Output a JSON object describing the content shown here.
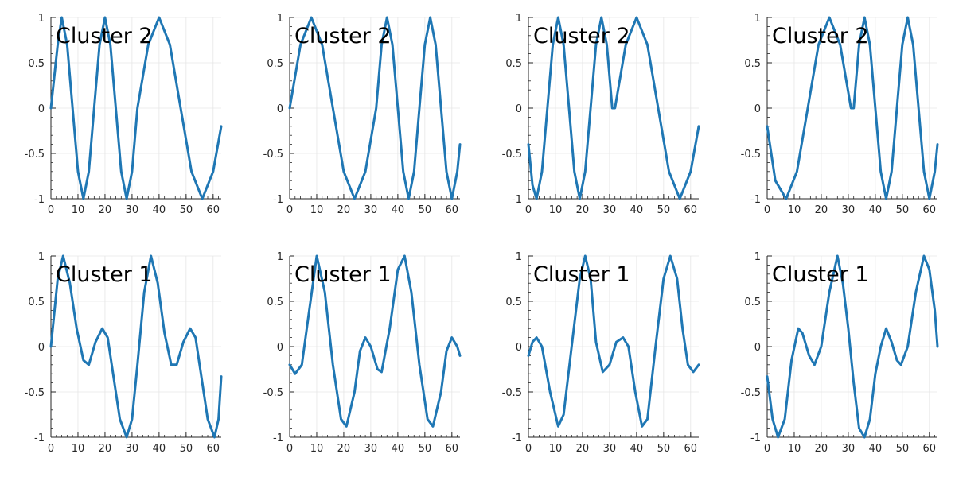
{
  "chart_data": [
    {
      "type": "line",
      "title": "Cluster 2",
      "xlim": [
        0,
        63
      ],
      "ylim": [
        -1,
        1
      ],
      "grid": true,
      "xticks": [
        0,
        10,
        20,
        30,
        40,
        50,
        60
      ],
      "yticks": [
        -1,
        -0.5,
        0,
        0.5,
        1
      ],
      "xtick_labels": [
        "0",
        "10",
        "20",
        "30",
        "40",
        "50",
        "60"
      ],
      "ytick_labels": [
        "-1",
        "-0.5",
        "0",
        "0.5",
        "1"
      ],
      "series": [
        {
          "color": "#1f77b4",
          "points": [
            [
              0,
              0
            ],
            [
              2.5,
              0.7
            ],
            [
              4,
              1
            ],
            [
              6,
              0.7
            ],
            [
              8,
              0
            ],
            [
              10,
              -0.7
            ],
            [
              12,
              -1
            ],
            [
              14,
              -0.7
            ],
            [
              16,
              0
            ],
            [
              18,
              0.7
            ],
            [
              20,
              1
            ],
            [
              22,
              0.7
            ],
            [
              24,
              0
            ],
            [
              26,
              -0.7
            ],
            [
              28,
              -1
            ],
            [
              30,
              -0.7
            ],
            [
              32,
              0
            ],
            [
              36,
              0.7
            ],
            [
              40,
              1
            ],
            [
              44,
              0.7
            ],
            [
              48,
              0
            ],
            [
              52,
              -0.7
            ],
            [
              56,
              -1
            ],
            [
              60,
              -0.7
            ],
            [
              63,
              -0.2
            ]
          ]
        }
      ]
    },
    {
      "type": "line",
      "title": "Cluster 2",
      "xlim": [
        0,
        63
      ],
      "ylim": [
        -1,
        1
      ],
      "grid": true,
      "xticks": [
        0,
        10,
        20,
        30,
        40,
        50,
        60
      ],
      "yticks": [
        -1,
        -0.5,
        0,
        0.5,
        1
      ],
      "xtick_labels": [
        "0",
        "10",
        "20",
        "30",
        "40",
        "50",
        "60"
      ],
      "ytick_labels": [
        "-1",
        "-0.5",
        "0",
        "0.5",
        "1"
      ],
      "series": [
        {
          "color": "#1f77b4",
          "points": [
            [
              0,
              0
            ],
            [
              4,
              0.7
            ],
            [
              8,
              1
            ],
            [
              12,
              0.7
            ],
            [
              16,
              0
            ],
            [
              20,
              -0.7
            ],
            [
              24,
              -1
            ],
            [
              28,
              -0.7
            ],
            [
              32,
              0
            ],
            [
              34,
              0.7
            ],
            [
              36,
              1
            ],
            [
              38,
              0.7
            ],
            [
              40,
              0
            ],
            [
              42,
              -0.7
            ],
            [
              44,
              -1
            ],
            [
              46,
              -0.7
            ],
            [
              48,
              0
            ],
            [
              50,
              0.7
            ],
            [
              52,
              1
            ],
            [
              54,
              0.7
            ],
            [
              56,
              0
            ],
            [
              58,
              -0.7
            ],
            [
              60,
              -1
            ],
            [
              62,
              -0.7
            ],
            [
              63,
              -0.4
            ]
          ]
        }
      ]
    },
    {
      "type": "line",
      "title": "Cluster 2",
      "xlim": [
        0,
        63
      ],
      "ylim": [
        -1,
        1
      ],
      "grid": true,
      "xticks": [
        0,
        10,
        20,
        30,
        40,
        50,
        60
      ],
      "yticks": [
        -1,
        -0.5,
        0,
        0.5,
        1
      ],
      "xtick_labels": [
        "0",
        "10",
        "20",
        "30",
        "40",
        "50",
        "60"
      ],
      "ytick_labels": [
        "-1",
        "-0.5",
        "0",
        "0.5",
        "1"
      ],
      "series": [
        {
          "color": "#1f77b4",
          "points": [
            [
              0,
              -0.4
            ],
            [
              1.5,
              -0.85
            ],
            [
              3,
              -1
            ],
            [
              5,
              -0.7
            ],
            [
              7,
              0
            ],
            [
              9,
              0.7
            ],
            [
              11,
              1
            ],
            [
              13,
              0.7
            ],
            [
              15,
              0
            ],
            [
              17,
              -0.7
            ],
            [
              19,
              -1
            ],
            [
              21,
              -0.7
            ],
            [
              23,
              0
            ],
            [
              25,
              0.7
            ],
            [
              27,
              1
            ],
            [
              29,
              0.7
            ],
            [
              31,
              0
            ],
            [
              32,
              0
            ],
            [
              36,
              0.7
            ],
            [
              40,
              1
            ],
            [
              44,
              0.7
            ],
            [
              48,
              0
            ],
            [
              52,
              -0.7
            ],
            [
              56,
              -1
            ],
            [
              60,
              -0.7
            ],
            [
              63,
              -0.2
            ]
          ]
        }
      ]
    },
    {
      "type": "line",
      "title": "Cluster 2",
      "xlim": [
        0,
        63
      ],
      "ylim": [
        -1,
        1
      ],
      "grid": true,
      "xticks": [
        0,
        10,
        20,
        30,
        40,
        50,
        60
      ],
      "yticks": [
        -1,
        -0.5,
        0,
        0.5,
        1
      ],
      "xtick_labels": [
        "0",
        "10",
        "20",
        "30",
        "40",
        "50",
        "60"
      ],
      "ytick_labels": [
        "-1",
        "-0.5",
        "0",
        "0.5",
        "1"
      ],
      "series": [
        {
          "color": "#1f77b4",
          "points": [
            [
              0,
              -0.2
            ],
            [
              3,
              -0.8
            ],
            [
              7,
              -1
            ],
            [
              11,
              -0.7
            ],
            [
              15,
              0
            ],
            [
              19,
              0.7
            ],
            [
              23,
              1
            ],
            [
              27,
              0.7
            ],
            [
              31,
              0
            ],
            [
              32,
              0
            ],
            [
              34,
              0.7
            ],
            [
              36,
              1
            ],
            [
              38,
              0.7
            ],
            [
              40,
              0
            ],
            [
              42,
              -0.7
            ],
            [
              44,
              -1
            ],
            [
              46,
              -0.7
            ],
            [
              48,
              0
            ],
            [
              50,
              0.7
            ],
            [
              52,
              1
            ],
            [
              54,
              0.7
            ],
            [
              56,
              0
            ],
            [
              58,
              -0.7
            ],
            [
              60,
              -1
            ],
            [
              62,
              -0.7
            ],
            [
              63,
              -0.4
            ]
          ]
        }
      ]
    },
    {
      "type": "line",
      "title": "Cluster 1",
      "xlim": [
        0,
        63
      ],
      "ylim": [
        -1,
        1
      ],
      "grid": true,
      "xticks": [
        0,
        10,
        20,
        30,
        40,
        50,
        60
      ],
      "yticks": [
        -1,
        -0.5,
        0,
        0.5,
        1
      ],
      "xtick_labels": [
        "0",
        "10",
        "20",
        "30",
        "40",
        "50",
        "60"
      ],
      "ytick_labels": [
        "-1",
        "-0.5",
        "0",
        "0.5",
        "1"
      ],
      "series": [
        {
          "color": "#1f77b4",
          "points": [
            [
              0,
              0
            ],
            [
              2.5,
              0.75
            ],
            [
              4.5,
              1
            ],
            [
              7,
              0.7
            ],
            [
              9.5,
              0.2
            ],
            [
              12,
              -0.15
            ],
            [
              14,
              -0.2
            ],
            [
              16.5,
              0.05
            ],
            [
              19,
              0.2
            ],
            [
              21,
              0.1
            ],
            [
              23,
              -0.3
            ],
            [
              25.5,
              -0.8
            ],
            [
              28,
              -1
            ],
            [
              30,
              -0.8
            ],
            [
              32,
              -0.2
            ],
            [
              34.5,
              0.6
            ],
            [
              37,
              1
            ],
            [
              39.5,
              0.7
            ],
            [
              42,
              0.15
            ],
            [
              44.5,
              -0.2
            ],
            [
              46.5,
              -0.2
            ],
            [
              49,
              0.05
            ],
            [
              51.5,
              0.2
            ],
            [
              53.5,
              0.1
            ],
            [
              55.5,
              -0.3
            ],
            [
              58,
              -0.8
            ],
            [
              60.5,
              -1
            ],
            [
              62,
              -0.8
            ],
            [
              63,
              -0.33
            ]
          ]
        }
      ]
    },
    {
      "type": "line",
      "title": "Cluster 1",
      "xlim": [
        0,
        63
      ],
      "ylim": [
        -1,
        1
      ],
      "grid": true,
      "xticks": [
        0,
        10,
        20,
        30,
        40,
        50,
        60
      ],
      "yticks": [
        -1,
        -0.5,
        0,
        0.5,
        1
      ],
      "xtick_labels": [
        "0",
        "10",
        "20",
        "30",
        "40",
        "50",
        "60"
      ],
      "ytick_labels": [
        "-1",
        "-0.5",
        "0",
        "0.5",
        "1"
      ],
      "series": [
        {
          "color": "#1f77b4",
          "points": [
            [
              0,
              -0.2
            ],
            [
              2,
              -0.3
            ],
            [
              4.5,
              -0.2
            ],
            [
              7,
              0.35
            ],
            [
              10,
              1
            ],
            [
              13,
              0.6
            ],
            [
              16,
              -0.2
            ],
            [
              19,
              -0.8
            ],
            [
              21,
              -0.88
            ],
            [
              24,
              -0.5
            ],
            [
              26,
              -0.05
            ],
            [
              28,
              0.1
            ],
            [
              30,
              0
            ],
            [
              32.5,
              -0.25
            ],
            [
              34,
              -0.28
            ],
            [
              37,
              0.2
            ],
            [
              40,
              0.85
            ],
            [
              42.5,
              1
            ],
            [
              45,
              0.6
            ],
            [
              48,
              -0.2
            ],
            [
              51,
              -0.8
            ],
            [
              53,
              -0.88
            ],
            [
              56,
              -0.5
            ],
            [
              58,
              -0.05
            ],
            [
              60,
              0.1
            ],
            [
              62,
              0
            ],
            [
              63,
              -0.1
            ]
          ]
        }
      ]
    },
    {
      "type": "line",
      "title": "Cluster 1",
      "xlim": [
        0,
        63
      ],
      "ylim": [
        -1,
        1
      ],
      "grid": true,
      "xticks": [
        0,
        10,
        20,
        30,
        40,
        50,
        60
      ],
      "yticks": [
        -1,
        -0.5,
        0,
        0.5,
        1
      ],
      "xtick_labels": [
        "0",
        "10",
        "20",
        "30",
        "40",
        "50",
        "60"
      ],
      "ytick_labels": [
        "-1",
        "-0.5",
        "0",
        "0.5",
        "1"
      ],
      "series": [
        {
          "color": "#1f77b4",
          "points": [
            [
              0,
              -0.1
            ],
            [
              1.5,
              0.05
            ],
            [
              3,
              0.1
            ],
            [
              5,
              0
            ],
            [
              8,
              -0.5
            ],
            [
              11,
              -0.88
            ],
            [
              13,
              -0.75
            ],
            [
              16,
              0
            ],
            [
              19,
              0.75
            ],
            [
              21,
              1
            ],
            [
              23,
              0.75
            ],
            [
              25,
              0.05
            ],
            [
              27.5,
              -0.28
            ],
            [
              30,
              -0.2
            ],
            [
              32.5,
              0.05
            ],
            [
              35,
              0.1
            ],
            [
              37,
              0
            ],
            [
              39.5,
              -0.5
            ],
            [
              42,
              -0.88
            ],
            [
              44,
              -0.8
            ],
            [
              47,
              0
            ],
            [
              50,
              0.75
            ],
            [
              52.5,
              1
            ],
            [
              55,
              0.75
            ],
            [
              57,
              0.2
            ],
            [
              59,
              -0.2
            ],
            [
              61,
              -0.28
            ],
            [
              63,
              -0.2
            ]
          ]
        }
      ]
    },
    {
      "type": "line",
      "title": "Cluster 1",
      "xlim": [
        0,
        63
      ],
      "ylim": [
        -1,
        1
      ],
      "grid": true,
      "xticks": [
        0,
        10,
        20,
        30,
        40,
        50,
        60
      ],
      "yticks": [
        -1,
        -0.5,
        0,
        0.5,
        1
      ],
      "xtick_labels": [
        "0",
        "10",
        "20",
        "30",
        "40",
        "50",
        "60"
      ],
      "ytick_labels": [
        "-1",
        "-0.5",
        "0",
        "0.5",
        "1"
      ],
      "series": [
        {
          "color": "#1f77b4",
          "points": [
            [
              0,
              -0.33
            ],
            [
              2,
              -0.8
            ],
            [
              4,
              -1
            ],
            [
              6.5,
              -0.8
            ],
            [
              9,
              -0.15
            ],
            [
              11.5,
              0.2
            ],
            [
              13,
              0.15
            ],
            [
              15.5,
              -0.1
            ],
            [
              17.5,
              -0.2
            ],
            [
              20,
              0
            ],
            [
              23,
              0.6
            ],
            [
              26,
              1
            ],
            [
              28,
              0.7
            ],
            [
              30,
              0.2
            ],
            [
              32,
              -0.4
            ],
            [
              34,
              -0.9
            ],
            [
              36,
              -1
            ],
            [
              38,
              -0.8
            ],
            [
              40,
              -0.3
            ],
            [
              42,
              0
            ],
            [
              44,
              0.2
            ],
            [
              46,
              0.05
            ],
            [
              48,
              -0.15
            ],
            [
              49.5,
              -0.2
            ],
            [
              52,
              0
            ],
            [
              55,
              0.6
            ],
            [
              58,
              1
            ],
            [
              60,
              0.85
            ],
            [
              62,
              0.4
            ],
            [
              63,
              0
            ]
          ]
        }
      ]
    }
  ]
}
